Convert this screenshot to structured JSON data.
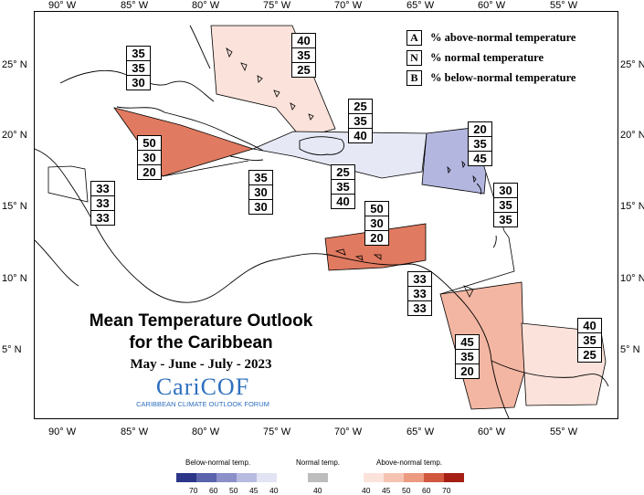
{
  "lon_ticks": [
    "90° W",
    "85° W",
    "80° W",
    "75° W",
    "70° W",
    "65° W",
    "60° W",
    "55° W"
  ],
  "lat_ticks": [
    "25° N",
    "20° N",
    "15° N",
    "10° N",
    "5° N"
  ],
  "legend": [
    {
      "key": "A",
      "text": "% above-normal temperature"
    },
    {
      "key": "N",
      "text": "% normal temperature"
    },
    {
      "key": "B",
      "text": "% below-normal temperature"
    }
  ],
  "title": {
    "line1": "Mean Temperature Outlook",
    "line2": "for the Caribbean",
    "period": "May - June - July - 2023"
  },
  "logo": {
    "name": "CariCOF",
    "sub": "CARIBBEAN CLIMATE OUTLOOK FORUM"
  },
  "regions": [
    {
      "id": "bahamas",
      "probs": [
        "40",
        "35",
        "25"
      ],
      "fill": "#fbe2da"
    },
    {
      "id": "cuba-north",
      "probs": [
        "35",
        "35",
        "30"
      ],
      "fill": "none"
    },
    {
      "id": "cayman-west-cuba",
      "probs": [
        "50",
        "30",
        "20"
      ],
      "fill": "#e07a60"
    },
    {
      "id": "belize-yucatan",
      "probs": [
        "33",
        "33",
        "33"
      ],
      "fill": "none"
    },
    {
      "id": "jamaica",
      "probs": [
        "35",
        "30",
        "30"
      ],
      "fill": "none"
    },
    {
      "id": "hispaniola-north",
      "probs": [
        "25",
        "35",
        "40"
      ],
      "fill": "#e6e9f5"
    },
    {
      "id": "hispaniola-south",
      "probs": [
        "25",
        "35",
        "40"
      ],
      "fill": "#e6e9f5"
    },
    {
      "id": "leeward-islands",
      "probs": [
        "20",
        "35",
        "45"
      ],
      "fill": "#b3b6df"
    },
    {
      "id": "windward-islands",
      "probs": [
        "30",
        "35",
        "35"
      ],
      "fill": "none"
    },
    {
      "id": "abc-islands",
      "probs": [
        "50",
        "30",
        "20"
      ],
      "fill": "#e07a60"
    },
    {
      "id": "trinidad",
      "probs": [
        "33",
        "33",
        "33"
      ],
      "fill": "none"
    },
    {
      "id": "guyana",
      "probs": [
        "45",
        "35",
        "20"
      ],
      "fill": "#f3b6a2"
    },
    {
      "id": "suriname-guiana",
      "probs": [
        "40",
        "35",
        "25"
      ],
      "fill": "#fbe2da"
    }
  ],
  "scale": {
    "below_title": "Below-normal temp.",
    "normal_title": "Normal temp.",
    "above_title": "Above-normal temp.",
    "below_colors": [
      "#2c3688",
      "#5a63ab",
      "#8b90c9",
      "#b8bbe0",
      "#e2e4f3"
    ],
    "below_labels": [
      "70",
      "60",
      "50",
      "45",
      "40"
    ],
    "normal_color": "#bdbdbd",
    "normal_label": "40",
    "above_colors": [
      "#fbe3dc",
      "#f6c3b2",
      "#ec9a80",
      "#d2573f",
      "#a51f14"
    ],
    "above_labels": [
      "40",
      "45",
      "50",
      "60",
      "70"
    ]
  }
}
